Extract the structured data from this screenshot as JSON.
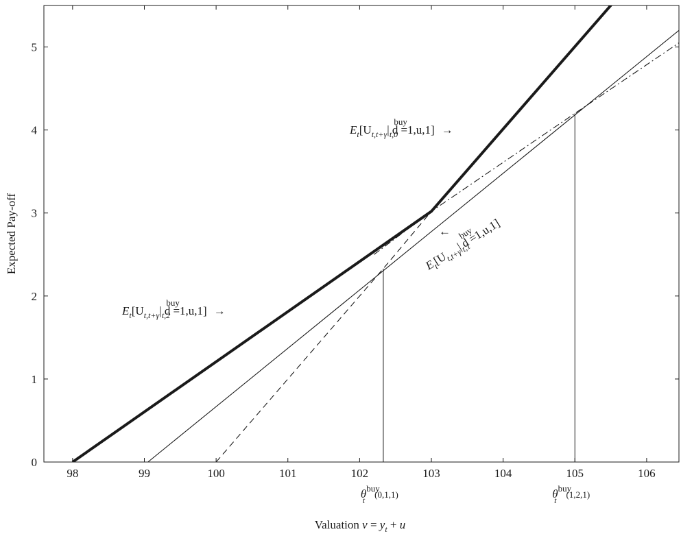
{
  "chart_data": {
    "type": "line",
    "title": "",
    "xlabel": "Valuation v = y_t + u",
    "ylabel": "Expected Pay-off",
    "xlim": [
      97.6,
      106.45
    ],
    "ylim": [
      0,
      5.5
    ],
    "x_ticks": [
      "98",
      "99",
      "100",
      "101",
      "102",
      "103",
      "104",
      "105",
      "106"
    ],
    "y_ticks": [
      "0",
      "1",
      "2",
      "3",
      "4",
      "5"
    ],
    "grid": false,
    "series": [
      {
        "style": "thick-solid",
        "x": [
          98.0,
          103.0,
          105.6
        ],
        "y": [
          0.0,
          3.02,
          5.6
        ]
      },
      {
        "style": "thin-solid",
        "x": [
          99.05,
          106.45
        ],
        "y": [
          0.0,
          5.2
        ]
      },
      {
        "style": "dashed",
        "x": [
          100.0,
          102.33,
          103.0
        ],
        "y": [
          0.0,
          2.33,
          3.02
        ]
      },
      {
        "style": "dash-dot",
        "x": [
          102.2,
          103.0,
          105.0,
          106.45
        ],
        "y": [
          2.5,
          3.02,
          4.2,
          5.05
        ]
      }
    ],
    "vertical_markers": [
      {
        "x": 102.33,
        "y_top": 2.33,
        "label": "θ",
        "sup": "buy",
        "sub": "t",
        "idx": "(0,1,1)"
      },
      {
        "x": 105.0,
        "y_top": 4.2,
        "label": "θ",
        "sup": "buy",
        "sub": "t",
        "idx": "(1,2,1)"
      }
    ],
    "annotations": [
      {
        "id": "d0",
        "main": "E",
        "sub_t": "t",
        "bracket": "[U",
        "sub_u": "t,t+γ",
        "bar": "| d",
        "sup": "buy",
        "sub_d": "t,0",
        "tail": " =1,u,1]",
        "arrow": "→"
      },
      {
        "id": "d1",
        "main": "E",
        "sub_t": "t",
        "bracket": "[U",
        "sub_u": "t,t+γ",
        "bar": "| d",
        "sup": "buy",
        "sub_d": "t,1",
        "tail": " =1,u,1]",
        "arrow": "←"
      },
      {
        "id": "d2",
        "main": "E",
        "sub_t": "t",
        "bracket": "[U",
        "sub_u": "t,t+γ",
        "bar": "| d",
        "sup": "buy",
        "sub_d": "t,2",
        "tail": " =1,u,1]",
        "arrow": "→"
      }
    ]
  }
}
